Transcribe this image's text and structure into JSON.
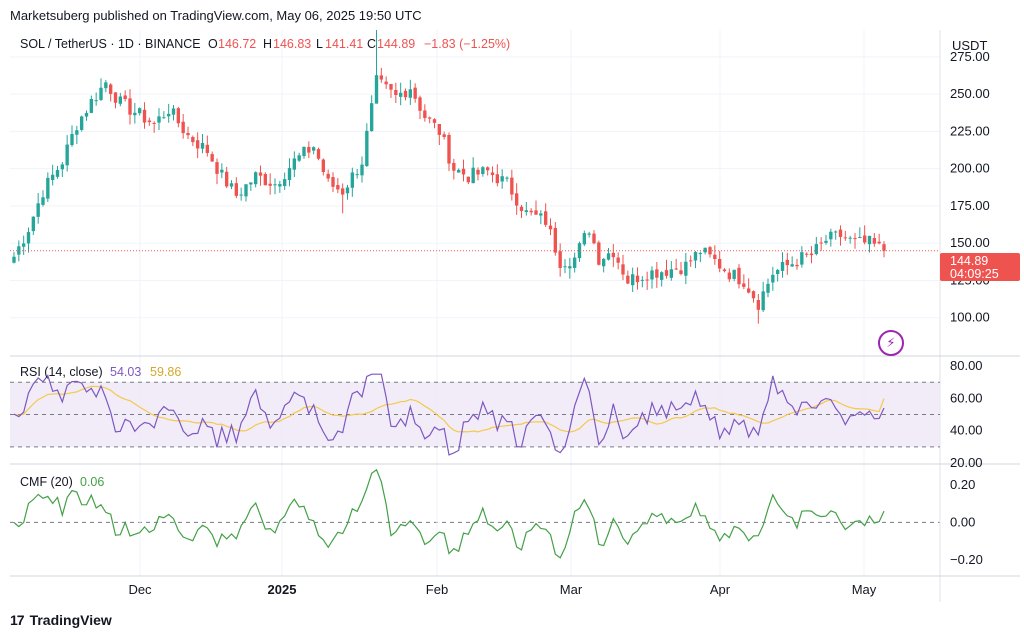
{
  "caption": "Marketsuberg published on TradingView.com, May 06, 2025 19:50 UTC",
  "symbol_line": {
    "symbol": "SOL / TetherUS · 1D · BINANCE",
    "o_label": "O",
    "o": "146.72",
    "h_label": "H",
    "h": "146.83",
    "l_label": "L",
    "l": "141.41",
    "c_label": "C",
    "c": "144.89",
    "change": "−1.83 (−1.25%)"
  },
  "currency": "USDT",
  "last_price_tag": "144.89",
  "countdown_tag": "04:09:25",
  "brand": "TradingView",
  "colors": {
    "up": "#26a69a",
    "down": "#ef5350",
    "rsi": "#7e57c2",
    "rsi_ma": "#f5c94a",
    "cmf": "#43a047",
    "bg_band": "#ede7f6"
  },
  "chart_data": [
    {
      "type": "candlestick",
      "title": "SOL / TetherUS · 1D · BINANCE",
      "ylabel": "USDT",
      "y_ticks": [
        100.0,
        125.0,
        150.0,
        175.0,
        200.0,
        225.0,
        250.0,
        275.0
      ],
      "y_tick_labels": [
        "100.00",
        "125.00",
        "150.00",
        "175.00",
        "200.00",
        "225.00",
        "250.00",
        "275.00"
      ],
      "ylim": [
        75,
        293
      ],
      "x_tick_labels": [
        "Dec",
        "2025",
        "Feb",
        "Mar",
        "Apr",
        "May"
      ],
      "last_close": 144.89,
      "close_keypoints": [
        [
          0,
          141
        ],
        [
          3,
          160
        ],
        [
          6,
          185
        ],
        [
          10,
          205
        ],
        [
          13,
          230
        ],
        [
          16,
          245
        ],
        [
          19,
          258
        ],
        [
          22,
          244
        ],
        [
          26,
          236
        ],
        [
          29,
          230
        ],
        [
          32,
          240
        ],
        [
          36,
          222
        ],
        [
          40,
          212
        ],
        [
          43,
          195
        ],
        [
          46,
          182
        ],
        [
          50,
          195
        ],
        [
          54,
          190
        ],
        [
          58,
          205
        ],
        [
          62,
          215
        ],
        [
          65,
          190
        ],
        [
          68,
          185
        ],
        [
          72,
          205
        ],
        [
          75,
          258
        ],
        [
          79,
          248
        ],
        [
          82,
          255
        ],
        [
          85,
          235
        ],
        [
          88,
          225
        ],
        [
          91,
          200
        ],
        [
          94,
          195
        ],
        [
          98,
          198
        ],
        [
          102,
          190
        ],
        [
          106,
          170
        ],
        [
          110,
          165
        ],
        [
          113,
          138
        ],
        [
          116,
          140
        ],
        [
          119,
          160
        ],
        [
          121,
          140
        ],
        [
          124,
          145
        ],
        [
          127,
          125
        ],
        [
          131,
          130
        ],
        [
          135,
          132
        ],
        [
          139,
          135
        ],
        [
          142,
          145
        ],
        [
          145,
          138
        ],
        [
          148,
          130
        ],
        [
          151,
          125
        ],
        [
          154,
          110
        ],
        [
          157,
          130
        ],
        [
          160,
          135
        ],
        [
          163,
          140
        ],
        [
          165,
          142
        ],
        [
          168,
          152
        ],
        [
          171,
          155
        ],
        [
          174,
          150
        ],
        [
          177,
          150
        ],
        [
          180,
          144.89
        ]
      ]
    },
    {
      "type": "line",
      "title": "RSI (14, close)",
      "series": [
        {
          "name": "RSI",
          "last_value": "54.03"
        },
        {
          "name": "RSI MA",
          "last_value": "59.86"
        }
      ],
      "y_ticks": [
        20.0,
        40.0,
        60.0,
        80.0
      ],
      "y_tick_labels": [
        "20.00",
        "40.00",
        "60.00",
        "80.00"
      ],
      "ylim": [
        20,
        85
      ],
      "bands": [
        30,
        50,
        70
      ]
    },
    {
      "type": "line",
      "title": "CMF (20)",
      "series": [
        {
          "name": "CMF",
          "last_value": "0.06"
        }
      ],
      "y_ticks": [
        -0.2,
        0.0,
        0.2
      ],
      "y_tick_labels": [
        "−0.20",
        "0.00",
        "0.20"
      ],
      "ylim": [
        -0.28,
        0.3
      ]
    }
  ]
}
